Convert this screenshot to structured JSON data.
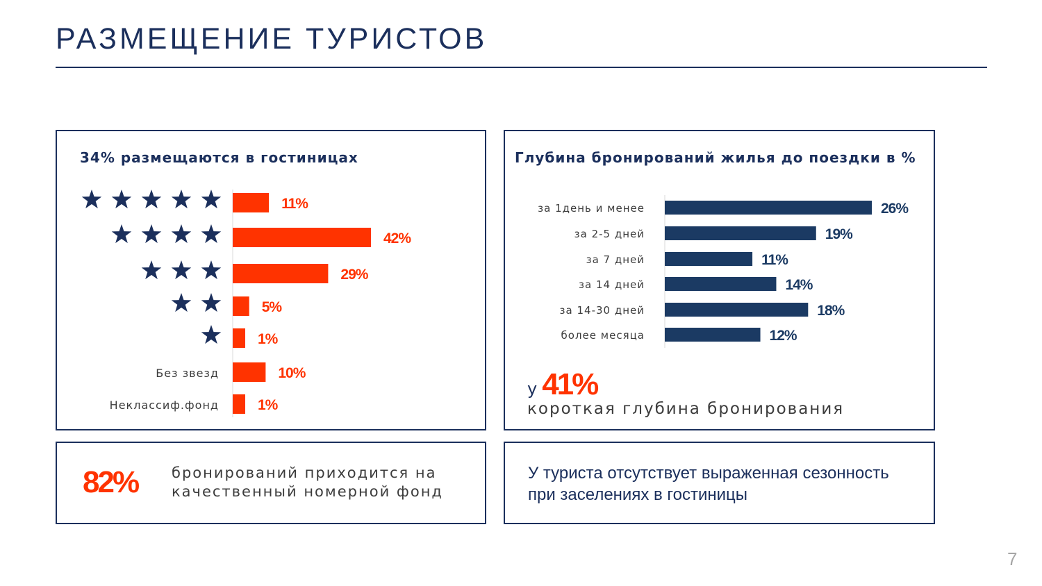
{
  "title": "РАЗМЕЩЕНИЕ ТУРИСТОВ",
  "colors": {
    "navy": "#1b2f5c",
    "accent": "#ff3300",
    "gray": "#3c3c3c"
  },
  "hotels_panel": {
    "heading": "34% размещаются в гостиницах"
  },
  "depth_panel": {
    "heading": "Глубина бронирований жилья до поездки в %",
    "highlight_prefix": "у",
    "highlight_value": "41%",
    "highlight_caption": "короткая глубина бронирования"
  },
  "share_panel": {
    "value": "82%",
    "text": "бронирований приходится на качественный номерной фонд"
  },
  "season_panel": {
    "text": "У туриста отсутствует выраженная сезонность при заселениях в гостиницы"
  },
  "page_number": "7",
  "chart_data": [
    {
      "type": "bar",
      "orientation": "horizontal",
      "categories": [
        {
          "label": "",
          "stars": 5
        },
        {
          "label": "",
          "stars": 4
        },
        {
          "label": "",
          "stars": 3
        },
        {
          "label": "",
          "stars": 2
        },
        {
          "label": "",
          "stars": 1
        },
        {
          "label": "Без звезд",
          "stars": 0
        },
        {
          "label": "Неклассиф.фонд",
          "stars": 0
        }
      ],
      "values": [
        11,
        42,
        29,
        5,
        1,
        10,
        1
      ],
      "value_labels": [
        "11%",
        "42%",
        "29%",
        "5%",
        "1%",
        "10%",
        "1%"
      ],
      "color": "#ff3300",
      "xlim": [
        0,
        42
      ]
    },
    {
      "type": "bar",
      "orientation": "horizontal",
      "categories": [
        "за 1день и менее",
        "за 2-5 дней",
        "за 7 дней",
        "за 14 дней",
        "за 14-30 дней",
        "более месяца"
      ],
      "values": [
        26,
        19,
        11,
        14,
        18,
        12
      ],
      "value_labels": [
        "26%",
        "19%",
        "11%",
        "14%",
        "18%",
        "12%"
      ],
      "color": "#1b3a63",
      "xlim": [
        0,
        26
      ]
    }
  ]
}
